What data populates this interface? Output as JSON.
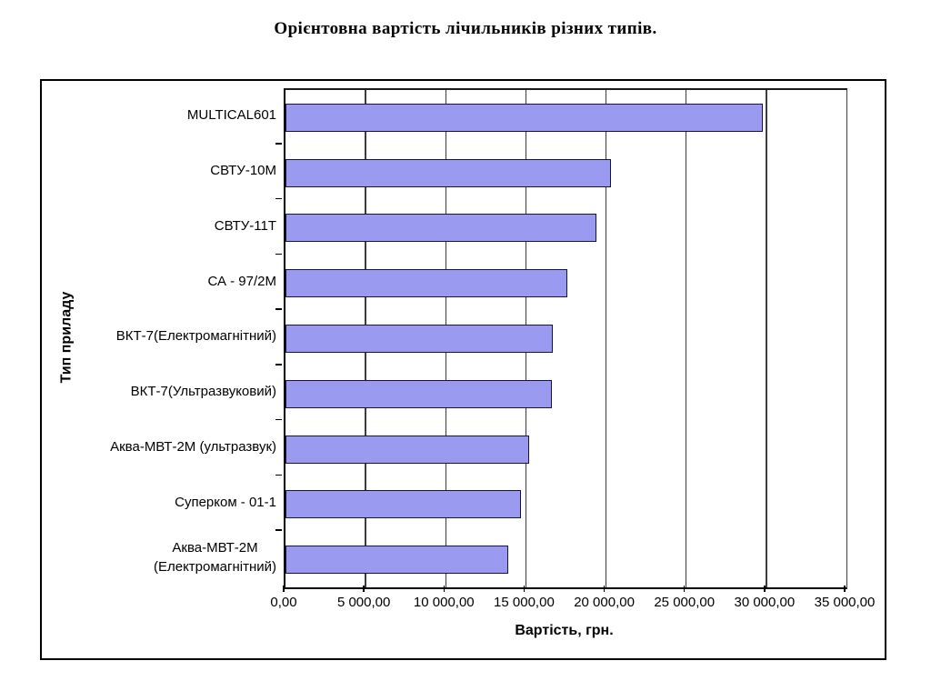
{
  "chart_data": {
    "type": "bar",
    "orientation": "horizontal",
    "title": "Орієнтовна вартість лічильників різних типів.",
    "xlabel": "Вартість, грн.",
    "ylabel": "Тип приладу",
    "categories": [
      "MULTICAL601",
      "СВТУ-10М",
      "СВТУ-11Т",
      "СА - 97/2М",
      "ВКТ-7(Електромагнітний)",
      "ВКТ-7(Ультразвуковий)",
      "Аква-МВТ-2М (ультразвук)",
      "Суперком - 01-1",
      "Аква-МВТ-2М (Електромагнітний)"
    ],
    "label_lines": [
      [
        "MULTICAL601"
      ],
      [
        "СВТУ-10М"
      ],
      [
        "СВТУ-11Т"
      ],
      [
        "СА - 97/2М"
      ],
      [
        "ВКТ-7(Електромагнітний)"
      ],
      [
        "ВКТ-7(Ультразвуковий)"
      ],
      [
        "Аква-МВТ-2М (ультразвук)"
      ],
      [
        "Суперком - 01-1"
      ],
      [
        "Аква-МВТ-2М",
        "(Електромагнітний)"
      ]
    ],
    "values": [
      29800,
      20300,
      19400,
      17600,
      16700,
      16600,
      15200,
      14700,
      13900
    ],
    "xlim": [
      0,
      35000
    ],
    "x_tick_values": [
      0,
      5000,
      10000,
      15000,
      20000,
      25000,
      30000,
      35000
    ],
    "x_tick_labels": [
      "0,00",
      "5 000,00",
      "10 000,00",
      "15 000,00",
      "20 000,00",
      "25 000,00",
      "30 000,00",
      "35 000,00"
    ],
    "grid": "vertical",
    "legend": "none",
    "bar_color": "#9a9af1",
    "bar_border_color": "#15153e",
    "gridline_color": "#3d3d3d"
  }
}
